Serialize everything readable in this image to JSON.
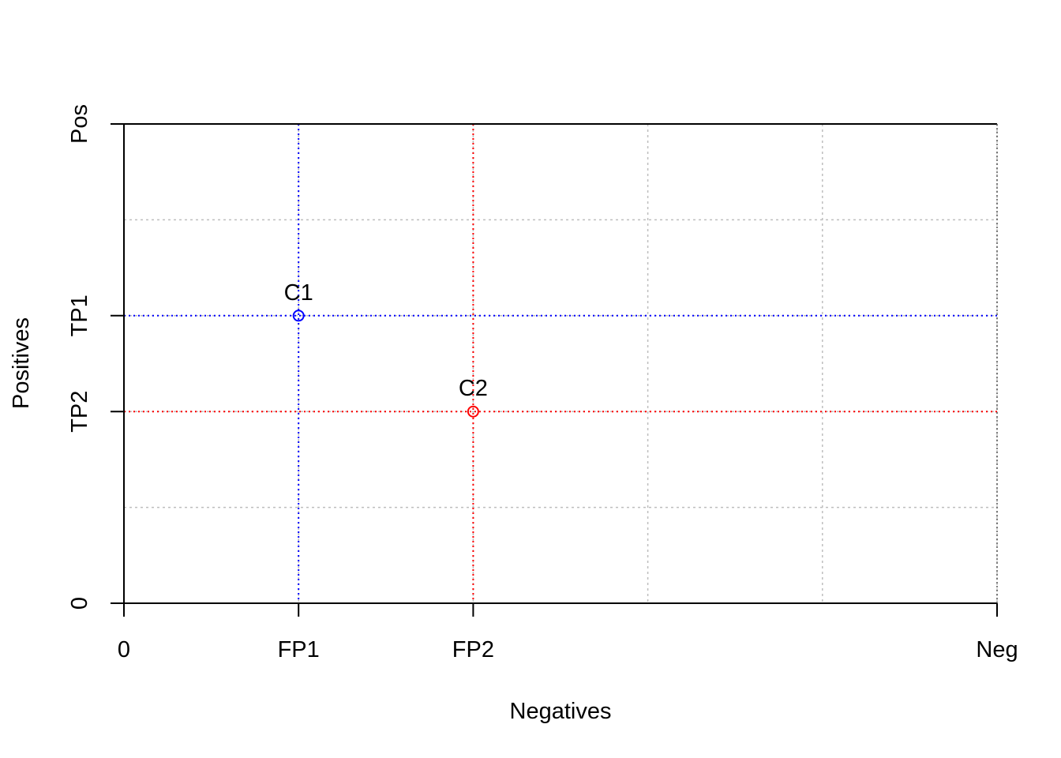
{
  "chart_data": {
    "type": "scatter",
    "title": "",
    "xlabel": "Negatives",
    "ylabel": "Positives",
    "xlim": [
      0,
      5
    ],
    "ylim": [
      0,
      5
    ],
    "x_ticks": [
      {
        "value": 0,
        "label": "0"
      },
      {
        "value": 1,
        "label": "FP1"
      },
      {
        "value": 2,
        "label": "FP2"
      },
      {
        "value": 5,
        "label": "Neg"
      }
    ],
    "y_ticks": [
      {
        "value": 0,
        "label": "0"
      },
      {
        "value": 2,
        "label": "TP2"
      },
      {
        "value": 3,
        "label": "TP1"
      },
      {
        "value": 5,
        "label": "Pos"
      }
    ],
    "grid": true,
    "grid_x": [
      1,
      2,
      3,
      4,
      5
    ],
    "grid_y": [
      1,
      2,
      3,
      4,
      5
    ],
    "points": [
      {
        "label": "C1",
        "x": 1,
        "y": 3,
        "color": "#0000ff"
      },
      {
        "label": "C2",
        "x": 2,
        "y": 2,
        "color": "#ff0000"
      }
    ],
    "grid_color": "#bebebe",
    "axis_color": "#000000"
  }
}
